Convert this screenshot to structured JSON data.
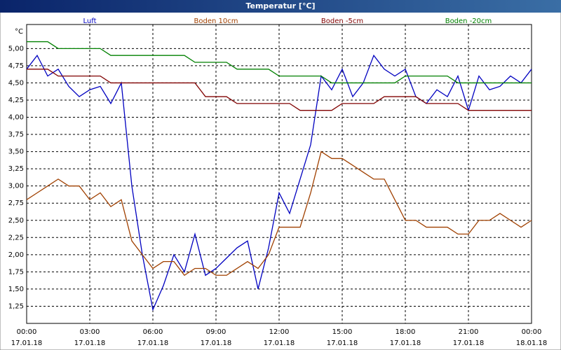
{
  "chart_data": {
    "type": "line",
    "title": "Temperatur [°C]",
    "y_label": "°C",
    "x": [
      0,
      0.5,
      1,
      1.5,
      2,
      2.5,
      3,
      3.5,
      4,
      4.5,
      5,
      5.5,
      6,
      6.5,
      7,
      7.5,
      8,
      8.5,
      9,
      9.5,
      10,
      10.5,
      11,
      11.5,
      12,
      12.5,
      13,
      13.5,
      14,
      14.5,
      15,
      15.5,
      16,
      16.5,
      17,
      17.5,
      18,
      18.5,
      19,
      19.5,
      20,
      20.5,
      21,
      21.5,
      22,
      22.5,
      23,
      23.5,
      24
    ],
    "series": [
      {
        "name": "Luft",
        "color": "#0000c0",
        "values": [
          4.7,
          4.9,
          4.6,
          4.7,
          4.45,
          4.3,
          4.4,
          4.45,
          4.2,
          4.5,
          3.0,
          2.0,
          1.2,
          1.55,
          2.0,
          1.75,
          2.3,
          1.7,
          1.8,
          1.95,
          2.1,
          2.2,
          1.5,
          2.1,
          2.9,
          2.6,
          3.1,
          3.6,
          4.6,
          4.4,
          4.7,
          4.3,
          4.5,
          4.9,
          4.7,
          4.6,
          4.7,
          4.3,
          4.2,
          4.4,
          4.3,
          4.6,
          4.1,
          4.6,
          4.4,
          4.45,
          4.6,
          4.5,
          4.7
        ]
      },
      {
        "name": "Boden 10cm",
        "color": "#a04000",
        "values": [
          2.8,
          2.9,
          3.0,
          3.1,
          3.0,
          3.0,
          2.8,
          2.9,
          2.7,
          2.8,
          2.2,
          2.0,
          1.8,
          1.9,
          1.9,
          1.7,
          1.8,
          1.8,
          1.7,
          1.7,
          1.8,
          1.9,
          1.8,
          2.0,
          2.4,
          2.4,
          2.4,
          2.9,
          3.5,
          3.4,
          3.4,
          3.3,
          3.2,
          3.1,
          3.1,
          2.8,
          2.5,
          2.5,
          2.4,
          2.4,
          2.4,
          2.3,
          2.3,
          2.5,
          2.5,
          2.6,
          2.5,
          2.4,
          2.5
        ]
      },
      {
        "name": "Boden -5cm",
        "color": "#800000",
        "values": [
          4.7,
          4.7,
          4.7,
          4.6,
          4.6,
          4.6,
          4.6,
          4.6,
          4.5,
          4.5,
          4.5,
          4.5,
          4.5,
          4.5,
          4.5,
          4.5,
          4.5,
          4.3,
          4.3,
          4.3,
          4.2,
          4.2,
          4.2,
          4.2,
          4.2,
          4.2,
          4.1,
          4.1,
          4.1,
          4.1,
          4.2,
          4.2,
          4.2,
          4.2,
          4.3,
          4.3,
          4.3,
          4.3,
          4.2,
          4.2,
          4.2,
          4.2,
          4.1,
          4.1,
          4.1,
          4.1,
          4.1,
          4.1,
          4.1
        ]
      },
      {
        "name": "Boden -20cm",
        "color": "#008000",
        "values": [
          5.1,
          5.1,
          5.1,
          5.0,
          5.0,
          5.0,
          5.0,
          5.0,
          4.9,
          4.9,
          4.9,
          4.9,
          4.9,
          4.9,
          4.9,
          4.9,
          4.8,
          4.8,
          4.8,
          4.8,
          4.7,
          4.7,
          4.7,
          4.7,
          4.6,
          4.6,
          4.6,
          4.6,
          4.6,
          4.5,
          4.5,
          4.5,
          4.5,
          4.5,
          4.5,
          4.5,
          4.6,
          4.6,
          4.6,
          4.6,
          4.6,
          4.5,
          4.5,
          4.5,
          4.5,
          4.5,
          4.5,
          4.5,
          4.5
        ]
      }
    ],
    "xlim": [
      0,
      24
    ],
    "xticks": [
      {
        "value": 0,
        "label": "00:00"
      },
      {
        "value": 3,
        "label": "03:00"
      },
      {
        "value": 6,
        "label": "06:00"
      },
      {
        "value": 9,
        "label": "09:00"
      },
      {
        "value": 12,
        "label": "12:00"
      },
      {
        "value": 15,
        "label": "15:00"
      },
      {
        "value": 18,
        "label": "18:00"
      },
      {
        "value": 21,
        "label": "21:00"
      },
      {
        "value": 24,
        "label": "00:00"
      }
    ],
    "xtick_dates": [
      "17.01.18",
      "17.01.18",
      "17.01.18",
      "17.01.18",
      "17.01.18",
      "17.01.18",
      "17.01.18",
      "17.01.18",
      "18.01.18"
    ],
    "ylim": [
      1.0,
      5.35
    ],
    "yticks": [
      {
        "value": 1.25,
        "label": "1,25"
      },
      {
        "value": 1.5,
        "label": "1,50"
      },
      {
        "value": 1.75,
        "label": "1,75"
      },
      {
        "value": 2.0,
        "label": "2,00"
      },
      {
        "value": 2.25,
        "label": "2,25"
      },
      {
        "value": 2.5,
        "label": "2,50"
      },
      {
        "value": 2.75,
        "label": "2,75"
      },
      {
        "value": 3.0,
        "label": "3,00"
      },
      {
        "value": 3.25,
        "label": "3,25"
      },
      {
        "value": 3.5,
        "label": "3,50"
      },
      {
        "value": 3.75,
        "label": "3,75"
      },
      {
        "value": 4.0,
        "label": "4,00"
      },
      {
        "value": 4.25,
        "label": "4,25"
      },
      {
        "value": 4.5,
        "label": "4,50"
      },
      {
        "value": 4.75,
        "label": "4,75"
      },
      {
        "value": 5.0,
        "label": "5,00"
      }
    ],
    "grid": true
  }
}
